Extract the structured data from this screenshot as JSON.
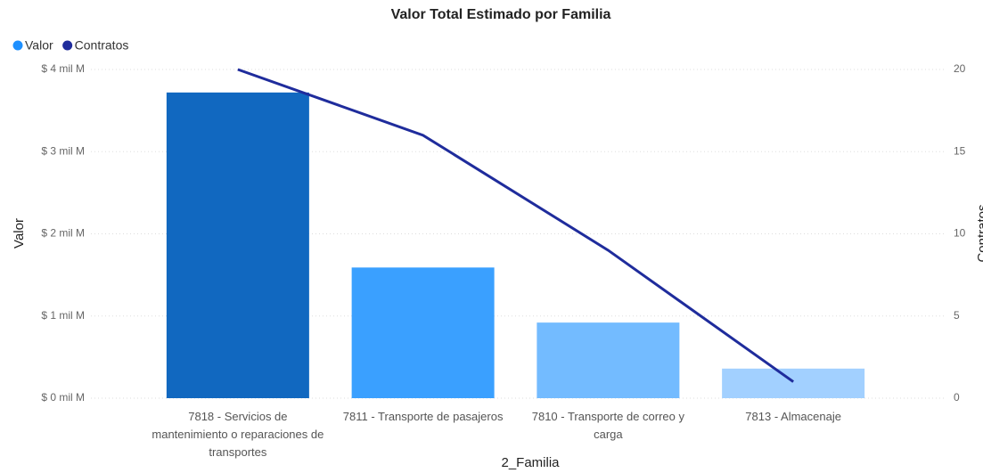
{
  "chart_data": {
    "type": "bar-line",
    "title": "Valor Total Estimado por Familia",
    "x_label": "2_Familia",
    "y_label": "Valor",
    "y2_label": "Contratos",
    "categories": [
      "7818 - Servicios de mantenimiento o reparaciones de transportes",
      "7811 - Transporte de pasajeros",
      "7810 - Transporte de correo y carga",
      "7813 - Almacenaje"
    ],
    "series": [
      {
        "name": "Valor",
        "type": "bar",
        "color": "#1e90ff",
        "point_colors": [
          "#1168c0",
          "#3aa0ff",
          "#73bbff",
          "#a2d0ff"
        ],
        "values": [
          3720000000,
          1590000000,
          920000000,
          360000000
        ]
      },
      {
        "name": "Contratos",
        "type": "line",
        "axis": "y2",
        "color": "#1f2c9c",
        "values": [
          20,
          16,
          9,
          1
        ]
      }
    ],
    "ylim": [
      0,
      4000000000
    ],
    "yticks": [
      {
        "value": 0,
        "label": "$ 0 mil M"
      },
      {
        "value": 1000000000,
        "label": "$ 1 mil M"
      },
      {
        "value": 2000000000,
        "label": "$ 2 mil M"
      },
      {
        "value": 3000000000,
        "label": "$ 3 mil M"
      },
      {
        "value": 4000000000,
        "label": "$ 4 mil M"
      }
    ],
    "y2lim": [
      0,
      20
    ],
    "y2ticks": [
      0,
      5,
      10,
      15,
      20
    ],
    "grid": true,
    "legend": "top-left"
  }
}
